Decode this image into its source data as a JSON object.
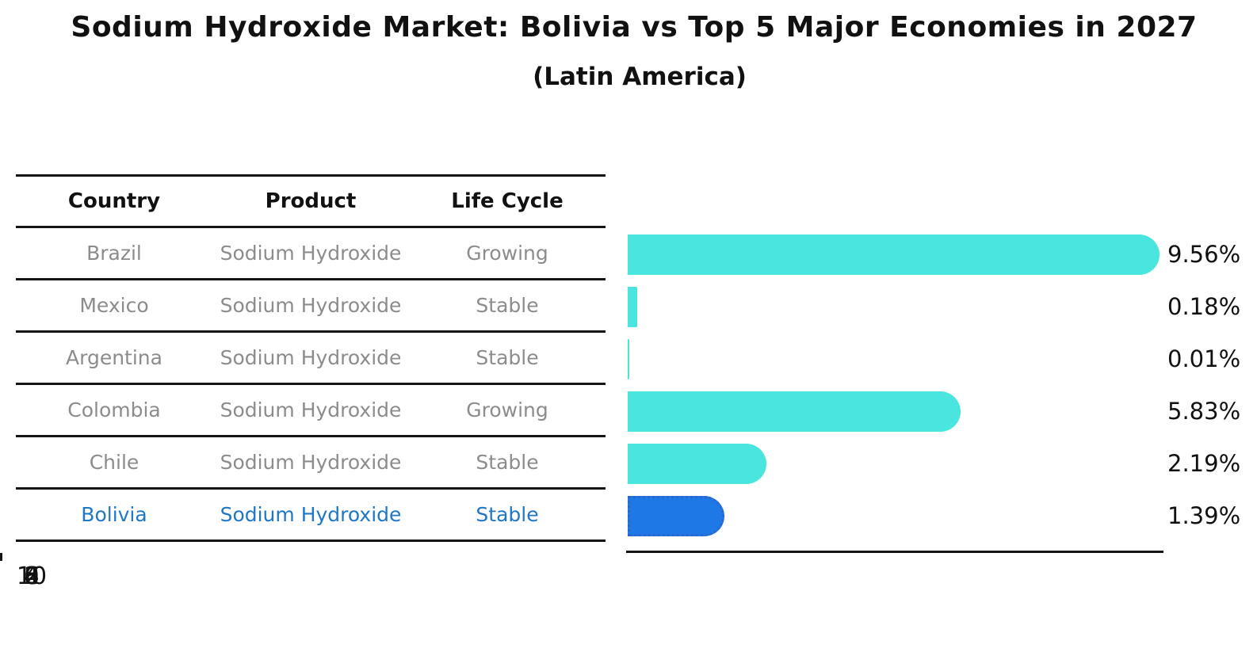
{
  "title": "Sodium Hydroxide Market: Bolivia vs Top 5 Major Economies in 2027",
  "subtitle": "(Latin America)",
  "table": {
    "columns": [
      "Country",
      "Product",
      "Life Cycle"
    ],
    "rows": [
      {
        "country": "Brazil",
        "product": "Sodium Hydroxide",
        "life_cycle": "Growing"
      },
      {
        "country": "Mexico",
        "product": "Sodium Hydroxide",
        "life_cycle": "Stable"
      },
      {
        "country": "Argentina",
        "product": "Sodium Hydroxide",
        "life_cycle": "Stable"
      },
      {
        "country": "Colombia",
        "product": "Sodium Hydroxide",
        "life_cycle": "Growing"
      },
      {
        "country": "Chile",
        "product": "Sodium Hydroxide",
        "life_cycle": "Stable"
      },
      {
        "country": "Bolivia",
        "product": "Sodium Hydroxide",
        "life_cycle": "Stable"
      }
    ],
    "highlight_row": 5
  },
  "chart_data": {
    "type": "bar",
    "orientation": "horizontal",
    "title": "Sodium Hydroxide Market: Bolivia vs Top 5 Major Economies in 2027 (Latin America)",
    "categories": [
      "Brazil",
      "Mexico",
      "Argentina",
      "Colombia",
      "Chile",
      "Bolivia"
    ],
    "values": [
      9.56,
      0.18,
      0.01,
      5.83,
      2.19,
      1.39
    ],
    "value_labels": [
      "9.56%",
      "0.18%",
      "0.01%",
      "5.83%",
      "2.19%",
      "1.39%"
    ],
    "unit": "%",
    "xlim": [
      0,
      10
    ],
    "xticks": [
      "0",
      "2",
      "4",
      "6",
      "8",
      "10"
    ],
    "grid": false,
    "legend": false,
    "highlight_index": 5,
    "colors": {
      "bar": "#4AE5DF",
      "highlight_bar": "#1E79E6",
      "highlight_border": "#2C66CC",
      "highlight_text": "#1F77C8",
      "text": "#111111",
      "cell_text": "#8C8C8C"
    }
  }
}
